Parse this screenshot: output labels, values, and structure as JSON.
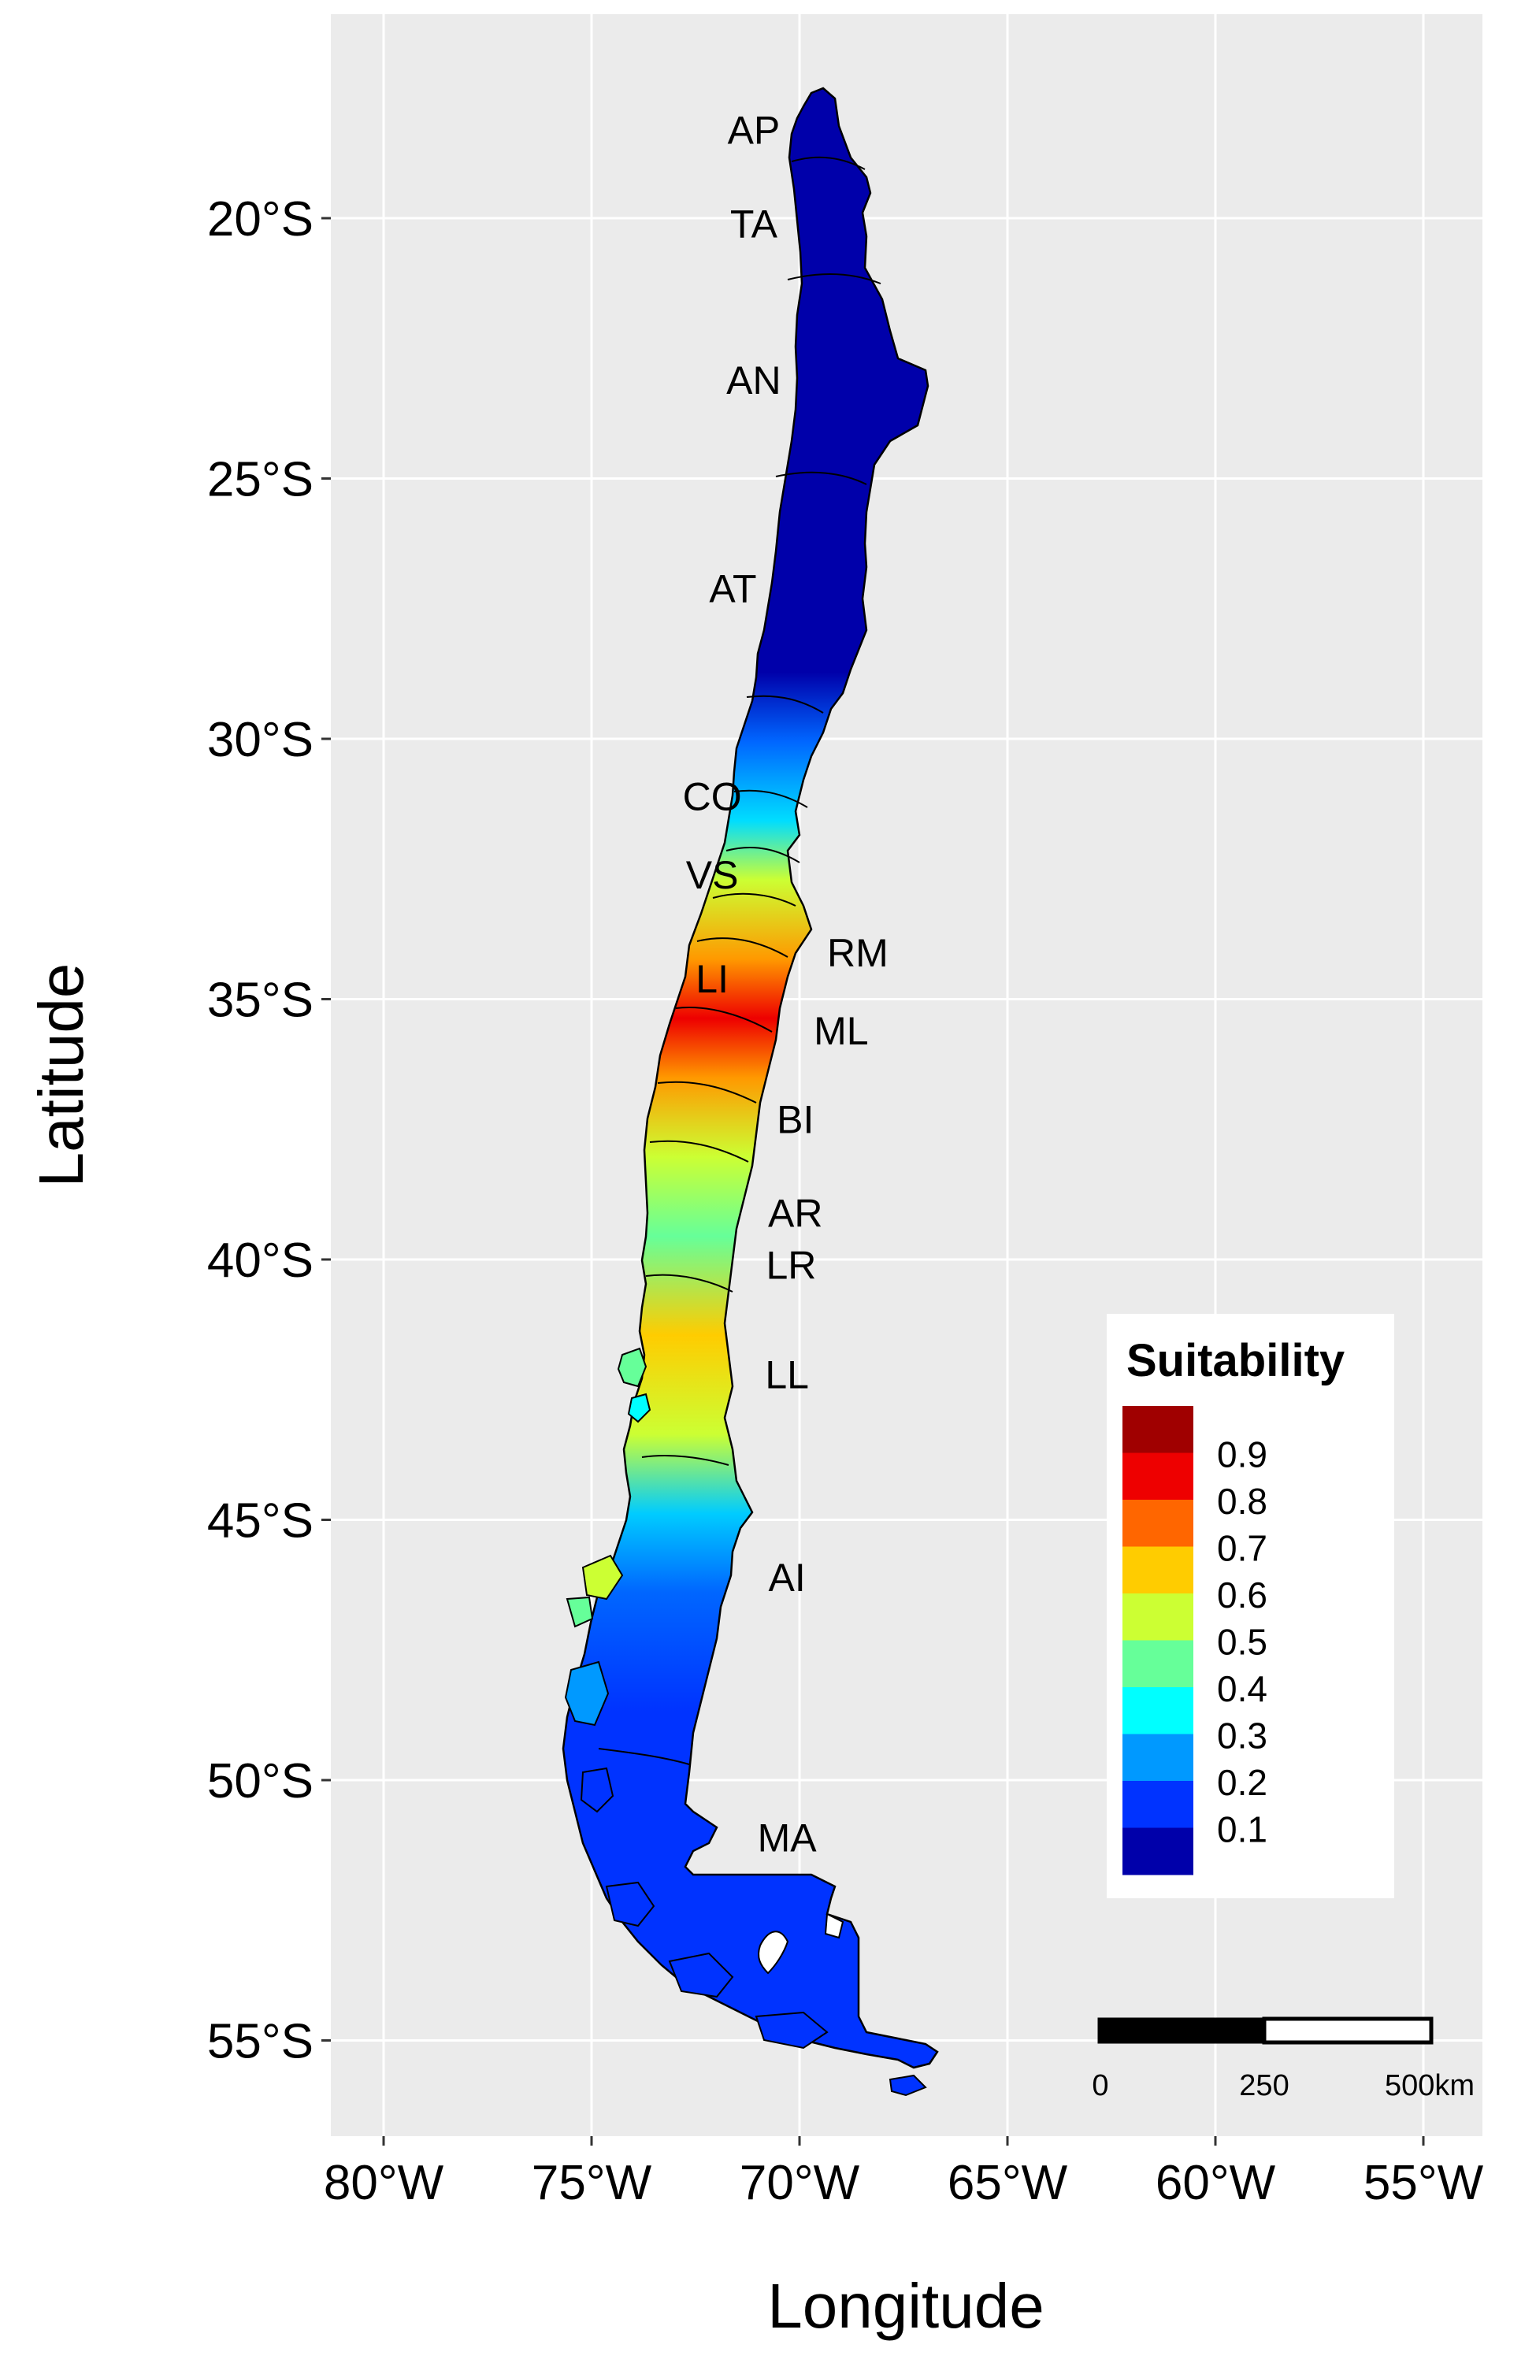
{
  "axes": {
    "xlabel": "Longitude",
    "ylabel": "Latitude",
    "xticks": [
      {
        "value": -80,
        "label": "80°W"
      },
      {
        "value": -75,
        "label": "75°W"
      },
      {
        "value": -70,
        "label": "70°W"
      },
      {
        "value": -65,
        "label": "65°W"
      },
      {
        "value": -60,
        "label": "60°W"
      },
      {
        "value": -55,
        "label": "55°W"
      }
    ],
    "yticks": [
      {
        "value": -20,
        "label": "20°S"
      },
      {
        "value": -25,
        "label": "25°S"
      },
      {
        "value": -30,
        "label": "30°S"
      },
      {
        "value": -35,
        "label": "35°S"
      },
      {
        "value": -40,
        "label": "40°S"
      },
      {
        "value": -45,
        "label": "45°S"
      },
      {
        "value": -50,
        "label": "50°S"
      },
      {
        "value": -55,
        "label": "55°S"
      }
    ],
    "xlim": [
      -81.3,
      -53.8
    ],
    "ylim": [
      -56.7,
      -16.6
    ],
    "panel_background": "#EBEBEB",
    "grid_color": "#FFFFFF",
    "grid": true
  },
  "regions": [
    {
      "code": "AP",
      "lon": -71.1,
      "lat": -18.3
    },
    {
      "code": "TA",
      "lon": -71.1,
      "lat": -20.1
    },
    {
      "code": "AN",
      "lon": -71.1,
      "lat": -23.1
    },
    {
      "code": "AT",
      "lon": -71.6,
      "lat": -27.1
    },
    {
      "code": "CO",
      "lon": -72.1,
      "lat": -31.1
    },
    {
      "code": "VS",
      "lon": -72.1,
      "lat": -32.6
    },
    {
      "code": "LI",
      "lon": -72.1,
      "lat": -34.6
    },
    {
      "code": "RM",
      "lon": -68.6,
      "lat": -34.1
    },
    {
      "code": "ML",
      "lon": -69.0,
      "lat": -35.6
    },
    {
      "code": "BI",
      "lon": -70.1,
      "lat": -37.3
    },
    {
      "code": "AR",
      "lon": -70.1,
      "lat": -39.1
    },
    {
      "code": "LR",
      "lon": -70.2,
      "lat": -40.1
    },
    {
      "code": "LL",
      "lon": -70.3,
      "lat": -42.2
    },
    {
      "code": "AI",
      "lon": -70.3,
      "lat": -46.1
    },
    {
      "code": "MA",
      "lon": -70.3,
      "lat": -51.1
    }
  ],
  "legend": {
    "title": "Suitability",
    "placement": "bottom-right",
    "bins": [
      {
        "label": "",
        "color": "#A00000"
      },
      {
        "label": "0.9",
        "color": "#EE0000"
      },
      {
        "label": "0.8",
        "color": "#FF6600"
      },
      {
        "label": "0.7",
        "color": "#FFCC00"
      },
      {
        "label": "0.6",
        "color": "#CCFF33"
      },
      {
        "label": "0.5",
        "color": "#66FF99"
      },
      {
        "label": "0.4",
        "color": "#00FFFF"
      },
      {
        "label": "0.3",
        "color": "#0099FF"
      },
      {
        "label": "0.2",
        "color": "#0033FF"
      },
      {
        "label": "0.1",
        "color": "#0000AA"
      }
    ]
  },
  "scalebar": {
    "labels": [
      "0",
      "250",
      "500km"
    ]
  },
  "suitability_bands": [
    {
      "from_lat": -17.5,
      "to_lat": -29.5,
      "value": 0.05
    },
    {
      "from_lat": -29.5,
      "to_lat": -32.0,
      "value": 0.25
    },
    {
      "from_lat": -32.0,
      "to_lat": -34.0,
      "value": 0.55
    },
    {
      "from_lat": -34.0,
      "to_lat": -39.5,
      "value": 0.75
    },
    {
      "from_lat": -39.5,
      "to_lat": -43.0,
      "value": 0.5
    },
    {
      "from_lat": -43.0,
      "to_lat": -48.5,
      "value": 0.6
    },
    {
      "from_lat": -48.5,
      "to_lat": -56.0,
      "value": 0.2
    }
  ]
}
